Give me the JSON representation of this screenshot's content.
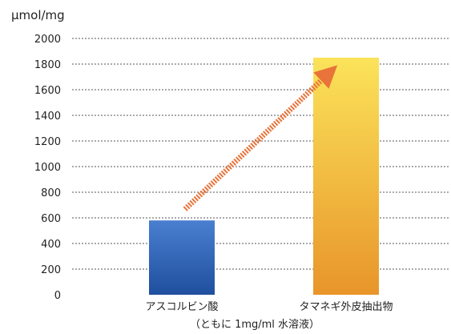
{
  "chart_data": {
    "type": "bar",
    "ylabel": "µmol/mg",
    "categories": [
      "アスコルビン酸",
      "タマネギ外皮抽出物"
    ],
    "values": [
      580,
      1850
    ],
    "ylim": [
      0,
      2000
    ],
    "ytick_step": 200,
    "yticks": [
      "0",
      "200",
      "400",
      "600",
      "800",
      "1000",
      "1200",
      "1400",
      "1600",
      "1800",
      "2000"
    ],
    "grid": true,
    "annotation": "（ともに 1mg/ml 水溶液）",
    "arrow": {
      "from_category": "アスコルビン酸",
      "to_category": "タマネギ外皮抽出物"
    },
    "colors": {
      "bar1_top": "#4a7fd0",
      "bar1_bottom": "#1f4f9e",
      "bar2_top": "#fbe35a",
      "bar2_bottom": "#e8952a",
      "arrow": "#e8743a",
      "grid": "#555555"
    }
  }
}
